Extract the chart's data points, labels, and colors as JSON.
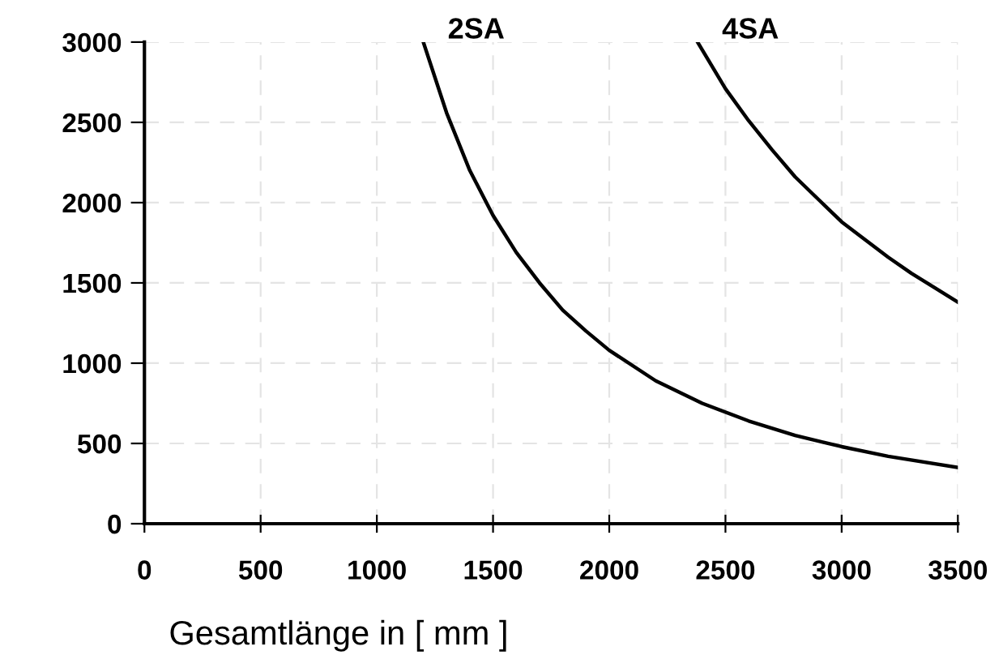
{
  "chart_data": {
    "type": "line",
    "xlabel": "Gesamtlänge in [ mm ]",
    "xlim": [
      0,
      3500
    ],
    "xticks": [
      0,
      500,
      1000,
      1500,
      2000,
      2500,
      3000,
      3500
    ],
    "ylim": [
      0,
      3000
    ],
    "yticks": [
      0,
      500,
      1000,
      1500,
      2000,
      2500,
      3000
    ],
    "grid": true,
    "line_style": "solid",
    "marker": "none",
    "series": [
      {
        "name": "2SA",
        "color": "#000000",
        "x": [
          1200,
          1300,
          1400,
          1500,
          1600,
          1700,
          1800,
          1900,
          2000,
          2200,
          2400,
          2600,
          2800,
          3000,
          3200,
          3500
        ],
        "values": [
          3000,
          2560,
          2200,
          1920,
          1690,
          1500,
          1330,
          1200,
          1080,
          890,
          750,
          640,
          550,
          480,
          420,
          350
        ]
      },
      {
        "name": "4SA",
        "color": "#000000",
        "x": [
          2380,
          2500,
          2600,
          2700,
          2800,
          2900,
          3000,
          3100,
          3200,
          3300,
          3400,
          3500
        ],
        "values": [
          3000,
          2710,
          2510,
          2330,
          2160,
          2020,
          1880,
          1770,
          1660,
          1560,
          1470,
          1380
        ]
      }
    ]
  }
}
